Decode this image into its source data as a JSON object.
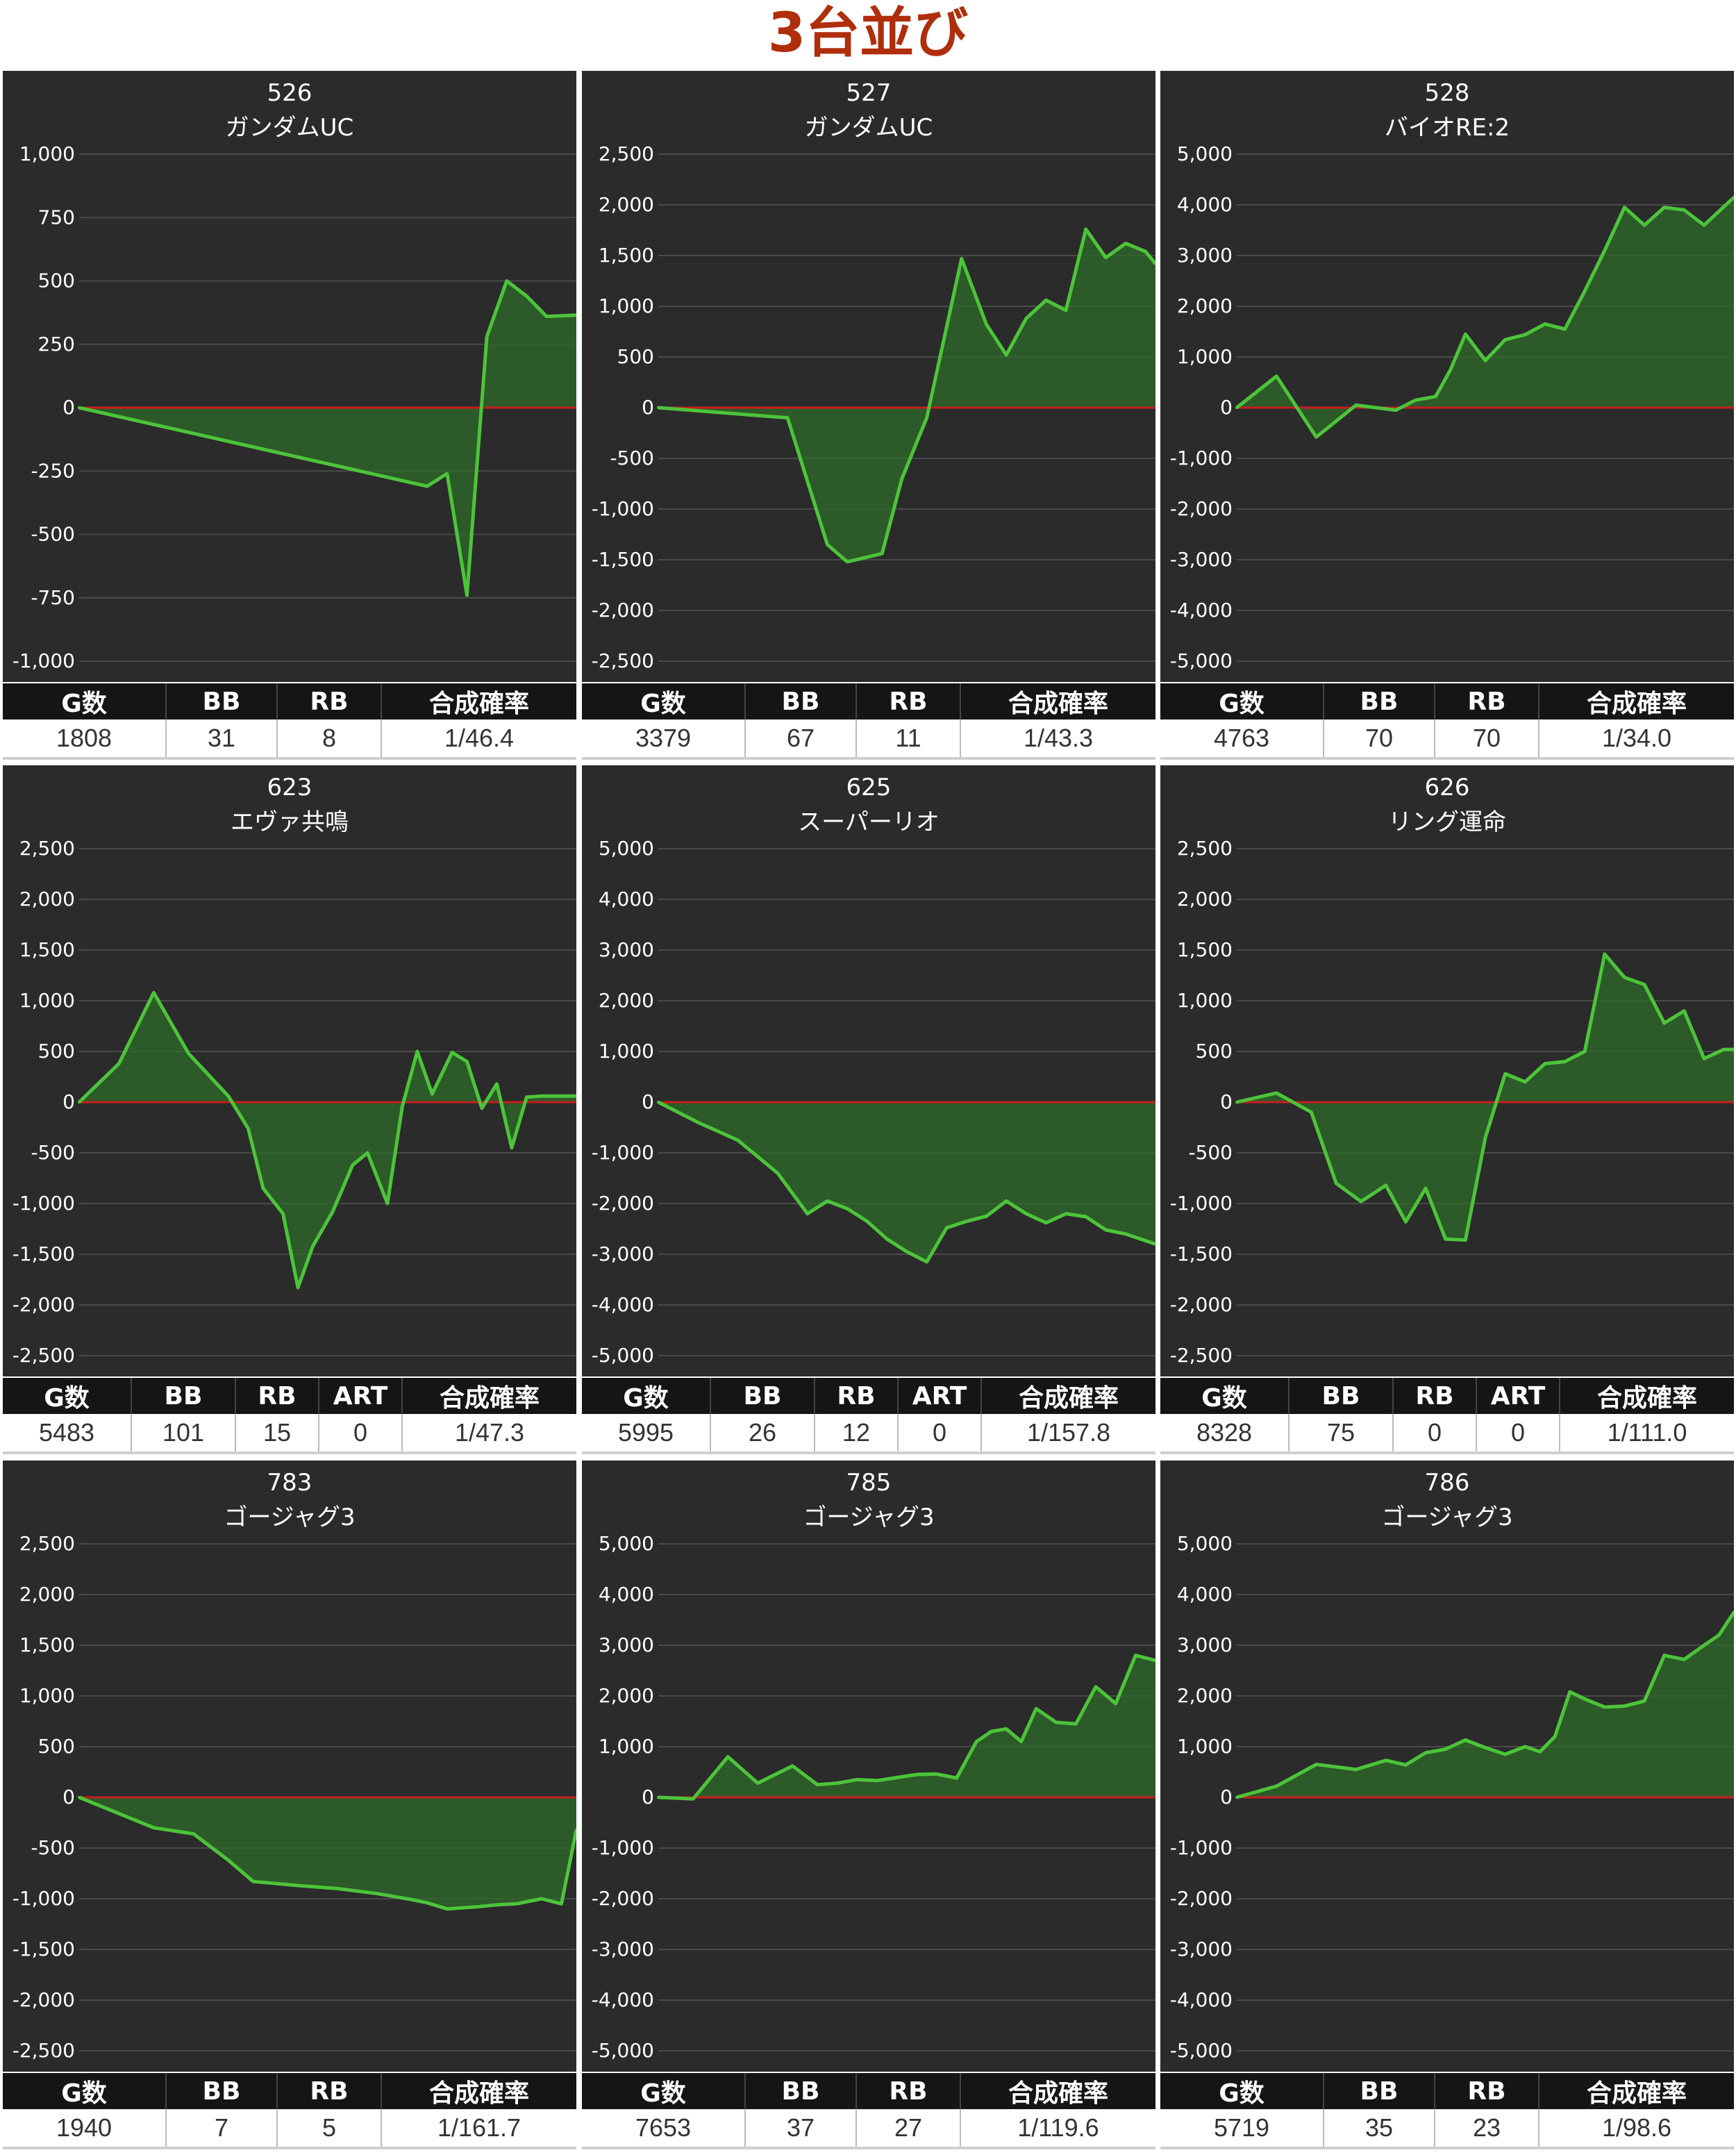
{
  "page": {
    "title": "3台並び"
  },
  "colors": {
    "panel_bg": "#2b2b2b",
    "grid": "#4a4a4a",
    "zero_line": "#c81e1e",
    "series_line": "#4cc43a",
    "series_fill": "#2f6b2a",
    "title": "#b02e0c"
  },
  "charts": [
    {
      "unit_number": "526",
      "machine_name": "ガンダムUC",
      "stats_headers": [
        "G数",
        "BB",
        "RB",
        "合成確率"
      ],
      "stats_values": [
        "1808",
        "31",
        "8",
        "1/46.4"
      ],
      "chart_data": {
        "type": "area",
        "ylim": [
          -1000,
          1000
        ],
        "y_ticks": [
          1000,
          750,
          500,
          250,
          0,
          -250,
          -500,
          -750,
          -1000
        ],
        "y_tick_labels": [
          "1,000",
          "750",
          "500",
          "250",
          "0",
          "-250",
          "-500",
          "-750",
          "-1,000"
        ],
        "xlim": [
          0,
          100
        ],
        "x": [
          0,
          70,
          74,
          78,
          82,
          86,
          90,
          94,
          100
        ],
        "y": [
          0,
          -310,
          -260,
          -740,
          280,
          500,
          440,
          360,
          365
        ]
      }
    },
    {
      "unit_number": "527",
      "machine_name": "ガンダムUC",
      "stats_headers": [
        "G数",
        "BB",
        "RB",
        "合成確率"
      ],
      "stats_values": [
        "3379",
        "67",
        "11",
        "1/43.3"
      ],
      "chart_data": {
        "type": "area",
        "ylim": [
          -2500,
          2500
        ],
        "y_ticks": [
          2500,
          2000,
          1500,
          1000,
          500,
          0,
          -500,
          -1000,
          -1500,
          -2000,
          -2500
        ],
        "y_tick_labels": [
          "2,500",
          "2,000",
          "1,500",
          "1,000",
          "500",
          "0",
          "-500",
          "-1,000",
          "-1,500",
          "-2,000",
          "-2,500"
        ],
        "xlim": [
          0,
          100
        ],
        "x": [
          0,
          26,
          34,
          38,
          45,
          49,
          54,
          61,
          66,
          70,
          74,
          78,
          82,
          86,
          90,
          94,
          98,
          100
        ],
        "y": [
          0,
          -100,
          -1350,
          -1520,
          -1440,
          -700,
          -100,
          1470,
          820,
          520,
          880,
          1060,
          960,
          1760,
          1480,
          1620,
          1540,
          1420
        ]
      }
    },
    {
      "unit_number": "528",
      "machine_name": "バイオRE:2",
      "stats_headers": [
        "G数",
        "BB",
        "RB",
        "合成確率"
      ],
      "stats_values": [
        "4763",
        "70",
        "70",
        "1/34.0"
      ],
      "chart_data": {
        "type": "area",
        "ylim": [
          -5000,
          5000
        ],
        "y_ticks": [
          5000,
          4000,
          3000,
          2000,
          1000,
          0,
          -1000,
          -2000,
          -3000,
          -4000,
          -5000
        ],
        "y_tick_labels": [
          "5,000",
          "4,000",
          "3,000",
          "2,000",
          "1,000",
          "0",
          "-1,000",
          "-2,000",
          "-3,000",
          "-4,000",
          "-5,000"
        ],
        "xlim": [
          0,
          100
        ],
        "x": [
          0,
          8,
          16,
          24,
          32,
          36,
          40,
          43,
          46,
          50,
          54,
          58,
          62,
          66,
          70,
          74,
          78,
          82,
          86,
          90,
          94,
          100
        ],
        "y": [
          0,
          620,
          -580,
          50,
          -50,
          150,
          220,
          750,
          1450,
          930,
          1340,
          1440,
          1650,
          1550,
          2300,
          3100,
          3950,
          3600,
          3950,
          3900,
          3600,
          4150
        ]
      }
    },
    {
      "unit_number": "623",
      "machine_name": "エヴァ共鳴",
      "stats_headers": [
        "G数",
        "BB",
        "RB",
        "ART",
        "合成確率"
      ],
      "stats_values": [
        "5483",
        "101",
        "15",
        "0",
        "1/47.3"
      ],
      "chart_data": {
        "type": "area",
        "ylim": [
          -2500,
          2500
        ],
        "y_ticks": [
          2500,
          2000,
          1500,
          1000,
          500,
          0,
          -500,
          -1000,
          -1500,
          -2000,
          -2500
        ],
        "y_tick_labels": [
          "2,500",
          "2,000",
          "1,500",
          "1,000",
          "500",
          "0",
          "-500",
          "-1,000",
          "-1,500",
          "-2,000",
          "-2,500"
        ],
        "xlim": [
          0,
          100
        ],
        "x": [
          0,
          8,
          15,
          22,
          30,
          34,
          37,
          41,
          44,
          47,
          51,
          55,
          58,
          62,
          65,
          68,
          71,
          75,
          78,
          81,
          84,
          87,
          90,
          93,
          96,
          100
        ],
        "y": [
          0,
          380,
          1080,
          480,
          60,
          -260,
          -850,
          -1100,
          -1830,
          -1420,
          -1080,
          -620,
          -500,
          -1000,
          -40,
          500,
          80,
          490,
          400,
          -60,
          180,
          -450,
          50,
          60,
          60,
          60
        ]
      }
    },
    {
      "unit_number": "625",
      "machine_name": "スーパーリオ",
      "stats_headers": [
        "G数",
        "BB",
        "RB",
        "ART",
        "合成確率"
      ],
      "stats_values": [
        "5995",
        "26",
        "12",
        "0",
        "1/157.8"
      ],
      "chart_data": {
        "type": "area",
        "ylim": [
          -5000,
          5000
        ],
        "y_ticks": [
          5000,
          4000,
          3000,
          2000,
          1000,
          0,
          -1000,
          -2000,
          -3000,
          -4000,
          -5000
        ],
        "y_tick_labels": [
          "5,000",
          "4,000",
          "3,000",
          "2,000",
          "1,000",
          "0",
          "-1,000",
          "-2,000",
          "-3,000",
          "-4,000",
          "-5,000"
        ],
        "xlim": [
          0,
          100
        ],
        "x": [
          0,
          8,
          16,
          24,
          30,
          34,
          38,
          42,
          46,
          50,
          54,
          58,
          62,
          66,
          70,
          74,
          78,
          82,
          86,
          90,
          94,
          100
        ],
        "y": [
          0,
          -400,
          -750,
          -1400,
          -2200,
          -1950,
          -2100,
          -2350,
          -2700,
          -2950,
          -3150,
          -2480,
          -2350,
          -2250,
          -1950,
          -2200,
          -2380,
          -2200,
          -2260,
          -2520,
          -2600,
          -2800
        ]
      }
    },
    {
      "unit_number": "626",
      "machine_name": "リング運命",
      "stats_headers": [
        "G数",
        "BB",
        "RB",
        "ART",
        "合成確率"
      ],
      "stats_values": [
        "8328",
        "75",
        "0",
        "0",
        "1/111.0"
      ],
      "chart_data": {
        "type": "area",
        "ylim": [
          -2500,
          2500
        ],
        "y_ticks": [
          2500,
          2000,
          1500,
          1000,
          500,
          0,
          -500,
          -1000,
          -1500,
          -2000,
          -2500
        ],
        "y_tick_labels": [
          "2,500",
          "2,000",
          "1,500",
          "1,000",
          "500",
          "0",
          "-500",
          "-1,000",
          "-1,500",
          "-2,000",
          "-2,500"
        ],
        "xlim": [
          0,
          100
        ],
        "x": [
          0,
          8,
          15,
          20,
          25,
          30,
          34,
          38,
          42,
          46,
          50,
          54,
          58,
          62,
          66,
          70,
          74,
          78,
          82,
          86,
          90,
          94,
          98,
          100
        ],
        "y": [
          0,
          90,
          -100,
          -800,
          -980,
          -820,
          -1180,
          -850,
          -1350,
          -1360,
          -350,
          280,
          200,
          380,
          400,
          500,
          1460,
          1230,
          1160,
          780,
          900,
          430,
          520,
          520
        ]
      }
    },
    {
      "unit_number": "783",
      "machine_name": "ゴージャグ3",
      "stats_headers": [
        "G数",
        "BB",
        "RB",
        "合成確率"
      ],
      "stats_values": [
        "1940",
        "7",
        "5",
        "1/161.7"
      ],
      "chart_data": {
        "type": "area",
        "ylim": [
          -2500,
          2500
        ],
        "y_ticks": [
          2500,
          2000,
          1500,
          1000,
          500,
          0,
          -500,
          -1000,
          -1500,
          -2000,
          -2500
        ],
        "y_tick_labels": [
          "2,500",
          "2,000",
          "1,500",
          "1,000",
          "500",
          "0",
          "-500",
          "-1,000",
          "-1,500",
          "-2,000",
          "-2,500"
        ],
        "xlim": [
          0,
          100
        ],
        "x": [
          0,
          15,
          23,
          30,
          35,
          44,
          52,
          60,
          67,
          70,
          74,
          80,
          84,
          88,
          93,
          97,
          100
        ],
        "y": [
          0,
          -300,
          -360,
          -620,
          -830,
          -870,
          -900,
          -950,
          -1010,
          -1040,
          -1100,
          -1080,
          -1060,
          -1050,
          -1000,
          -1050,
          -320
        ]
      }
    },
    {
      "unit_number": "785",
      "machine_name": "ゴージャグ3",
      "stats_headers": [
        "G数",
        "BB",
        "RB",
        "合成確率"
      ],
      "stats_values": [
        "7653",
        "37",
        "27",
        "1/119.6"
      ],
      "chart_data": {
        "type": "area",
        "ylim": [
          -5000,
          5000
        ],
        "y_ticks": [
          5000,
          4000,
          3000,
          2000,
          1000,
          0,
          -1000,
          -2000,
          -3000,
          -4000,
          -5000
        ],
        "y_tick_labels": [
          "5,000",
          "4,000",
          "3,000",
          "2,000",
          "1,000",
          "0",
          "-1,000",
          "-2,000",
          "-3,000",
          "-4,000",
          "-5,000"
        ],
        "xlim": [
          0,
          100
        ],
        "x": [
          0,
          7,
          14,
          20,
          27,
          32,
          36,
          40,
          44,
          48,
          52,
          56,
          60,
          64,
          67,
          70,
          73,
          76,
          80,
          84,
          88,
          92,
          96,
          100
        ],
        "y": [
          0,
          -30,
          800,
          280,
          620,
          250,
          280,
          350,
          330,
          390,
          450,
          460,
          380,
          1100,
          1300,
          1350,
          1100,
          1750,
          1480,
          1450,
          2180,
          1850,
          2800,
          2700
        ]
      }
    },
    {
      "unit_number": "786",
      "machine_name": "ゴージャグ3",
      "stats_headers": [
        "G数",
        "BB",
        "RB",
        "合成確率"
      ],
      "stats_values": [
        "5719",
        "35",
        "23",
        "1/98.6"
      ],
      "chart_data": {
        "type": "area",
        "ylim": [
          -5000,
          5000
        ],
        "y_ticks": [
          5000,
          4000,
          3000,
          2000,
          1000,
          0,
          -1000,
          -2000,
          -3000,
          -4000,
          -5000
        ],
        "y_tick_labels": [
          "5,000",
          "4,000",
          "3,000",
          "2,000",
          "1,000",
          "0",
          "-1,000",
          "-2,000",
          "-3,000",
          "-4,000",
          "-5,000"
        ],
        "xlim": [
          0,
          100
        ],
        "x": [
          0,
          8,
          16,
          24,
          30,
          34,
          38,
          42,
          46,
          50,
          54,
          58,
          61,
          64,
          67,
          70,
          74,
          78,
          82,
          86,
          90,
          94,
          97,
          100
        ],
        "y": [
          0,
          220,
          650,
          550,
          730,
          640,
          880,
          950,
          1130,
          980,
          850,
          1000,
          900,
          1200,
          2080,
          1940,
          1780,
          1800,
          1900,
          2800,
          2720,
          3000,
          3200,
          3650
        ]
      }
    }
  ]
}
